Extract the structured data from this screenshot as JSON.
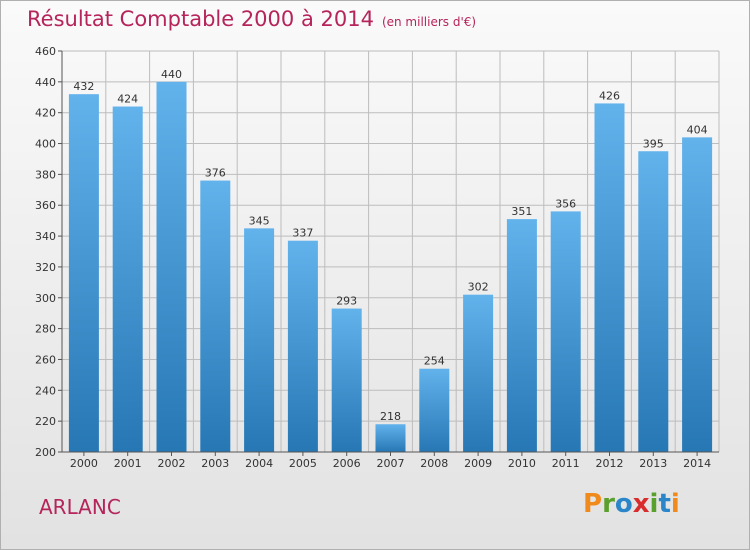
{
  "header": {
    "title": "Résultat Comptable 2000 à 2014",
    "subtitle": "(en milliers d'€)"
  },
  "footer": {
    "commune": "ARLANC",
    "logo_text": "Proxiti",
    "logo_colors": [
      "#f08a1c",
      "#5aa02c",
      "#2a86c9",
      "#d92c2c",
      "#5aa02c",
      "#2a86c9",
      "#f08a1c"
    ]
  },
  "colors": {
    "bar_top": "#62b2ec",
    "bar_bottom": "#2677b4",
    "title": "#b5245a",
    "grid": "#bdbdbd"
  },
  "chart_data": {
    "type": "bar",
    "title": "Résultat Comptable 2000 à 2014",
    "categories": [
      "2000",
      "2001",
      "2002",
      "2003",
      "2004",
      "2005",
      "2006",
      "2007",
      "2008",
      "2009",
      "2010",
      "2011",
      "2012",
      "2013",
      "2014"
    ],
    "values": [
      432,
      424,
      440,
      376,
      345,
      337,
      293,
      218,
      254,
      302,
      351,
      356,
      426,
      395,
      404
    ],
    "ylim": [
      200,
      460
    ],
    "yticks": [
      200,
      220,
      240,
      260,
      280,
      300,
      320,
      340,
      360,
      380,
      400,
      420,
      440,
      460
    ],
    "grid": true,
    "data_labels": true
  }
}
